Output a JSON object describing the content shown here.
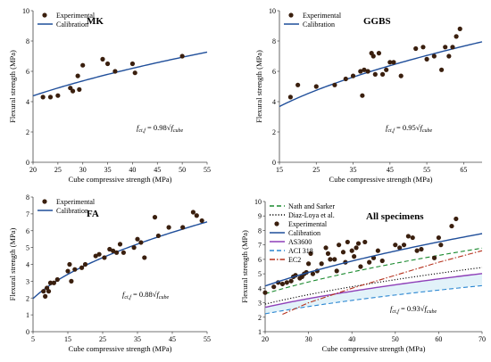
{
  "colors": {
    "marker": "#3a1f0e",
    "calibration": "#1f4e9a",
    "nath_sarker": "#1a8a2e",
    "diaz_loya": "#000000",
    "as3600": "#8e3fb8",
    "aci318": "#2a86d1",
    "ec2": "#b5311d",
    "band": "#cfe9f5",
    "axis": "#444444"
  },
  "chart_data": [
    {
      "type": "scatter",
      "title": "MK",
      "xlabel": "Cube compressive strength (MPa)",
      "ylabel": "Flexural strength (MPa)",
      "xlim": [
        20,
        55
      ],
      "ylim": [
        0,
        10
      ],
      "xticks": [
        "20",
        "25",
        "30",
        "35",
        "40",
        "45",
        "50",
        "55"
      ],
      "yticks": [
        "0",
        "2",
        "4",
        "6",
        "8",
        "10"
      ],
      "legend": [
        "Experimental",
        "Calibration"
      ],
      "legend_position": "top-left",
      "formula_prefix": "f",
      "formula_sub": "ct,f",
      "formula_mid": " = 0.98",
      "formula_arg": "f",
      "formula_arg_sub": "cube",
      "calibration_coef": 0.98,
      "series": [
        {
          "x": [
            22,
            23.5,
            25,
            27.5,
            28,
            29,
            29.3,
            30,
            34,
            35,
            36.5,
            40,
            40.5,
            50
          ],
          "y": [
            4.3,
            4.3,
            4.4,
            4.9,
            4.7,
            5.7,
            4.8,
            6.4,
            6.8,
            6.5,
            6.0,
            6.5,
            5.9,
            7.0
          ]
        }
      ]
    },
    {
      "type": "scatter",
      "title": "GGBS",
      "xlabel": "Cube compressive strength (MPa)",
      "ylabel": "Flexural strength (MPa)",
      "xlim": [
        15,
        70
      ],
      "ylim": [
        0,
        10
      ],
      "xticks": [
        "15",
        "25",
        "35",
        "45",
        "55",
        "65"
      ],
      "yticks": [
        "0",
        "2",
        "4",
        "6",
        "8",
        "10"
      ],
      "legend": [
        "Experimental",
        "Calibration"
      ],
      "legend_position": "top-left",
      "formula_prefix": "f",
      "formula_sub": "ct,f",
      "formula_mid": " = 0.95",
      "formula_arg": "f",
      "formula_arg_sub": "cube",
      "calibration_coef": 0.95,
      "series": [
        {
          "x": [
            18,
            20,
            25,
            30,
            33,
            35,
            37,
            37.5,
            38,
            39,
            40,
            40.5,
            41,
            42,
            43,
            44,
            45,
            46,
            48,
            52,
            54,
            55,
            57,
            59,
            60,
            61,
            62,
            63,
            64
          ],
          "y": [
            4.3,
            5.1,
            5.0,
            5.1,
            5.5,
            5.7,
            6.0,
            4.4,
            6.1,
            6.0,
            7.2,
            7.0,
            5.8,
            7.2,
            5.8,
            6.1,
            6.6,
            6.6,
            5.7,
            7.5,
            7.6,
            6.8,
            7.0,
            6.1,
            7.6,
            7.0,
            7.6,
            8.3,
            8.8
          ]
        }
      ]
    },
    {
      "type": "scatter",
      "title": "FA",
      "xlabel": "Cube compressive strength (MPa)",
      "ylabel": "Flexural strength (MPa)",
      "xlim": [
        5,
        55
      ],
      "ylim": [
        0,
        8
      ],
      "xticks": [
        "5",
        "15",
        "25",
        "35",
        "45",
        "55"
      ],
      "yticks": [
        "0",
        "1",
        "2",
        "3",
        "4",
        "5",
        "6",
        "7",
        "8"
      ],
      "legend": [
        "Experimental",
        "Calibration"
      ],
      "legend_position": "top-left",
      "formula_prefix": "f",
      "formula_sub": "ct,f",
      "formula_mid": " = 0.88",
      "formula_arg": "f",
      "formula_arg_sub": "cube",
      "calibration_coef": 0.88,
      "series": [
        {
          "x": [
            8,
            8.5,
            9,
            9.5,
            10,
            11,
            12,
            15,
            15.5,
            16,
            17,
            19,
            20,
            23,
            24,
            25.5,
            27,
            28,
            29,
            30,
            31,
            34,
            35,
            36,
            37,
            40,
            41,
            44,
            48,
            51,
            52,
            53.5
          ],
          "y": [
            2.4,
            2.1,
            2.6,
            2.4,
            2.9,
            2.9,
            3.1,
            3.6,
            4.0,
            3.0,
            3.7,
            3.8,
            4.0,
            4.5,
            4.6,
            4.4,
            4.9,
            4.8,
            4.7,
            5.2,
            4.7,
            5.0,
            5.5,
            5.3,
            4.4,
            6.8,
            5.7,
            6.2,
            6.2,
            7.1,
            6.9,
            6.6
          ]
        }
      ]
    },
    {
      "type": "line",
      "title": "All specimens",
      "xlabel": "Cube compressive strength (MPa)",
      "ylabel": "Flexural strength (MPa)",
      "xlim": [
        20,
        70
      ],
      "ylim": [
        1,
        10
      ],
      "xticks": [
        "20",
        "30",
        "40",
        "50",
        "60",
        "70"
      ],
      "yticks": [
        "1",
        "2",
        "3",
        "4",
        "5",
        "6",
        "7",
        "8",
        "9",
        "10"
      ],
      "legend_position": "top-left",
      "formula_prefix": "f",
      "formula_sub": "ct,f",
      "formula_mid": " = 0.93",
      "formula_arg": "f",
      "formula_arg_sub": "cube",
      "series": [
        {
          "name": "Nath and Sarker",
          "coef": 0.81,
          "style": "dashed",
          "color_key": "nath_sarker"
        },
        {
          "name": "Diaz-Loya et al.",
          "coef": 0.65,
          "style": "dotted",
          "color_key": "diaz_loya"
        },
        {
          "name": "Experimental",
          "style": "markers",
          "x": [
            20,
            22,
            23,
            24,
            25,
            26,
            26.5,
            27,
            28,
            28.5,
            29,
            29.5,
            30,
            30.5,
            31,
            32,
            33,
            34,
            34.5,
            35,
            36,
            36.5,
            37,
            38,
            38.5,
            39,
            40,
            40.5,
            41,
            41.5,
            42,
            43,
            44,
            45,
            46,
            47,
            50,
            51,
            52,
            53,
            54,
            55,
            56,
            59,
            60,
            60.5,
            63,
            64
          ],
          "y": [
            3.7,
            4.1,
            4.4,
            4.3,
            4.4,
            4.5,
            4.8,
            4.9,
            4.7,
            4.8,
            5.0,
            5.1,
            5.7,
            6.4,
            5.0,
            5.2,
            5.7,
            6.8,
            6.4,
            6.0,
            6.0,
            5.2,
            7.0,
            6.5,
            5.8,
            7.2,
            6.6,
            6.2,
            6.8,
            7.1,
            5.5,
            7.2,
            5.8,
            6.1,
            6.6,
            5.9,
            7.0,
            6.8,
            7.0,
            7.6,
            7.5,
            6.6,
            6.7,
            6.1,
            7.5,
            7.0,
            8.3,
            8.8
          ]
        },
        {
          "name": "Calibration",
          "coef": 0.93,
          "style": "solid",
          "color_key": "calibration"
        },
        {
          "name": "AS3600",
          "coef": 0.6,
          "style": "solid",
          "color_key": "as3600"
        },
        {
          "name": "ACI 318",
          "coef": 0.5,
          "style": "dashed",
          "color_key": "aci318"
        },
        {
          "name": "EC2",
          "style": "dashdot",
          "color_key": "ec2",
          "x": [
            24,
            30,
            40,
            50,
            60,
            70
          ],
          "y": [
            2.2,
            3.0,
            4.0,
            4.9,
            5.8,
            6.6
          ]
        }
      ]
    }
  ]
}
